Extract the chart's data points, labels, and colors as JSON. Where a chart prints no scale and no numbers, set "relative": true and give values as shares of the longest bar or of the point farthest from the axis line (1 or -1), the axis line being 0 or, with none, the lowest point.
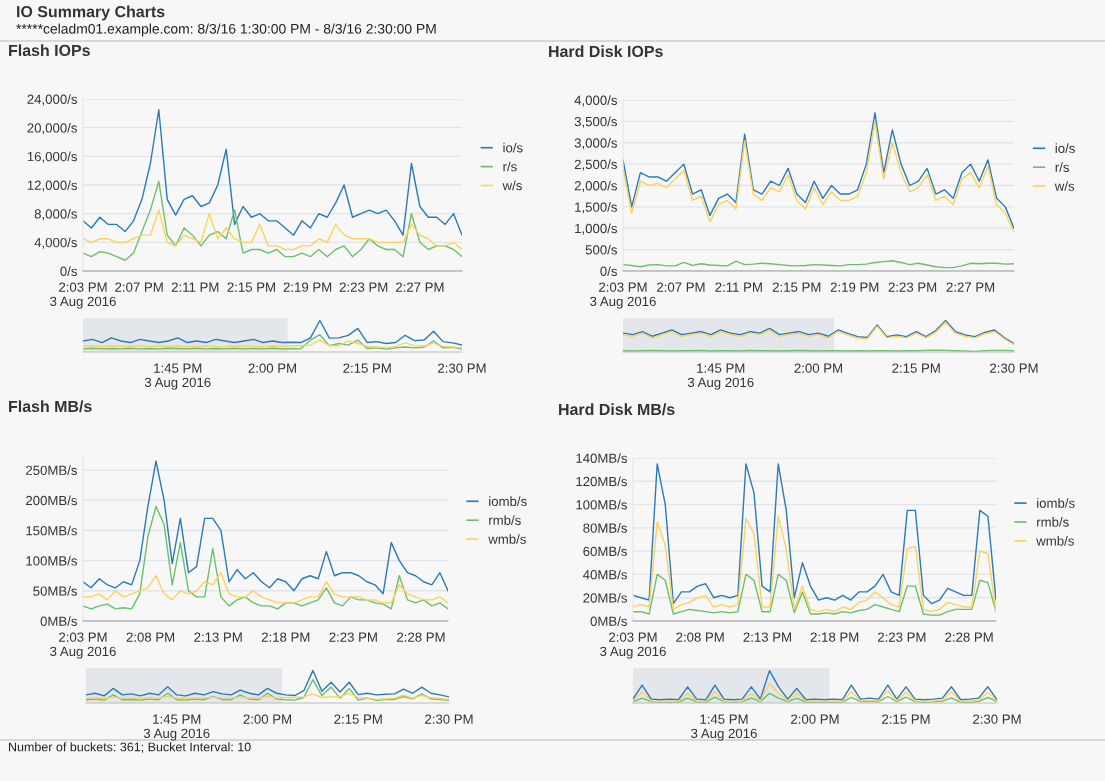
{
  "chart_data": [
    {
      "type": "other",
      "title": "IO Summary Charts",
      "subtitle": "*****celadm01.example.com: 8/3/16 1:30:00 PM - 8/3/16 2:30:00 PM",
      "annotations": [
        "Number of buckets: 361; Bucket Interval: 10"
      ]
    },
    {
      "type": "line",
      "title": "Flash IOPs",
      "legend": "right",
      "grid": "y",
      "xlim": [
        14.05,
        14.5
      ],
      "ylim": [
        0,
        24000
      ],
      "xticks": [
        {
          "value": 14.05,
          "label": "2:03 PM\n3 Aug 2016"
        },
        {
          "value": 14.1167,
          "label": "2:07 PM"
        },
        {
          "value": 14.1833,
          "label": "2:11 PM"
        },
        {
          "value": 14.25,
          "label": "2:15 PM"
        },
        {
          "value": 14.3167,
          "label": "2:19 PM"
        },
        {
          "value": 14.3833,
          "label": "2:23 PM"
        },
        {
          "value": 14.45,
          "label": "2:27 PM"
        }
      ],
      "yticks": [
        {
          "value": 0,
          "label": "0/s"
        },
        {
          "value": 4000,
          "label": "4,000/s"
        },
        {
          "value": 8000,
          "label": "8,000/s"
        },
        {
          "value": 12000,
          "label": "12,000/s"
        },
        {
          "value": 16000,
          "label": "16,000/s"
        },
        {
          "value": 20000,
          "label": "20,000/s"
        },
        {
          "value": 24000,
          "label": "24,000/s"
        }
      ],
      "x": [
        14.05,
        14.06,
        14.07,
        14.08,
        14.09,
        14.1,
        14.11,
        14.12,
        14.13,
        14.14,
        14.15,
        14.16,
        14.17,
        14.18,
        14.19,
        14.2,
        14.21,
        14.22,
        14.23,
        14.24,
        14.25,
        14.26,
        14.27,
        14.28,
        14.29,
        14.3,
        14.31,
        14.32,
        14.33,
        14.34,
        14.35,
        14.36,
        14.37,
        14.38,
        14.39,
        14.4,
        14.41,
        14.42,
        14.43,
        14.44,
        14.45,
        14.46,
        14.47,
        14.48,
        14.49,
        14.5
      ],
      "series": [
        {
          "name": "io/s",
          "color": "#2a7ab9",
          "values": [
            7000,
            6000,
            7500,
            6500,
            6500,
            5500,
            7000,
            10000,
            15000,
            22500,
            10000,
            7800,
            10000,
            10500,
            9000,
            9500,
            12000,
            17000,
            6500,
            9000,
            7500,
            8000,
            7000,
            7000,
            6000,
            5000,
            7000,
            6000,
            8000,
            7500,
            9500,
            12000,
            7500,
            8000,
            8500,
            8000,
            8500,
            7000,
            5000,
            15000,
            9000,
            7500,
            7500,
            6500,
            8000,
            5000
          ]
        },
        {
          "name": "r/s",
          "color": "#6cbf6c",
          "values": [
            2500,
            2000,
            2700,
            2500,
            2000,
            1500,
            2500,
            5500,
            8500,
            12500,
            5000,
            3500,
            6000,
            5000,
            3500,
            5000,
            5500,
            4500,
            8500,
            2500,
            3000,
            3000,
            2500,
            3000,
            2000,
            2000,
            2500,
            2000,
            3000,
            2000,
            3000,
            3500,
            2000,
            3000,
            4500,
            3500,
            3000,
            3000,
            2000,
            8000,
            4000,
            3000,
            3500,
            3500,
            3000,
            2000
          ]
        },
        {
          "name": "w/s",
          "color": "#fcd25a",
          "values": [
            4500,
            4000,
            4500,
            4500,
            4000,
            4000,
            4500,
            5000,
            5000,
            8500,
            4000,
            3500,
            5000,
            4500,
            4000,
            8000,
            4500,
            6000,
            4500,
            4000,
            4000,
            6500,
            3500,
            3500,
            3000,
            3000,
            3500,
            3500,
            4500,
            4000,
            6500,
            5000,
            4500,
            4500,
            4500,
            4000,
            4000,
            4000,
            4000,
            6500,
            5000,
            4500,
            3500,
            3500,
            4000,
            3000
          ]
        }
      ]
    },
    {
      "type": "line",
      "relative": true,
      "tick_labels": "x",
      "xlim": [
        13.5,
        14.5
      ],
      "xticks": [
        {
          "value": 13.75,
          "label": "1:45 PM\n3 Aug 2016"
        },
        {
          "value": 14,
          "label": "2:00 PM"
        },
        {
          "value": 14.25,
          "label": "2:15 PM"
        },
        {
          "value": 14.5,
          "label": "2:30 PM"
        }
      ],
      "bands": [
        {
          "axis": "x",
          "from": 13.5,
          "to": 14.04,
          "color": "#e3e6eb"
        }
      ],
      "x": [
        13.5,
        13.525,
        13.55,
        13.575,
        13.6,
        13.625,
        13.65,
        13.675,
        13.7,
        13.725,
        13.75,
        13.775,
        13.8,
        13.825,
        13.85,
        13.875,
        13.9,
        13.925,
        13.95,
        13.975,
        14,
        14.025,
        14.05,
        14.075,
        14.1,
        14.125,
        14.15,
        14.175,
        14.2,
        14.225,
        14.25,
        14.275,
        14.3,
        14.325,
        14.35,
        14.375,
        14.4,
        14.425,
        14.45,
        14.475,
        14.5
      ],
      "series": [
        {
          "color": "#2a7ab9",
          "values": [
            0.35,
            0.4,
            0.3,
            0.45,
            0.35,
            0.3,
            0.4,
            0.35,
            0.3,
            0.35,
            0.45,
            0.3,
            0.35,
            0.3,
            0.4,
            0.35,
            0.3,
            0.35,
            0.4,
            0.3,
            0.35,
            0.3,
            0.31,
            0.3,
            0.45,
            1,
            0.44,
            0.45,
            0.53,
            0.75,
            0.3,
            0.33,
            0.27,
            0.3,
            0.53,
            0.36,
            0.38,
            0.66,
            0.33,
            0.29,
            0.22
          ]
        },
        {
          "color": "#6cbf6c",
          "values": [
            0.1,
            0.12,
            0.1,
            0.11,
            0.1,
            0.12,
            0.1,
            0.11,
            0.1,
            0.12,
            0.11,
            0.1,
            0.12,
            0.1,
            0.11,
            0.1,
            0.12,
            0.1,
            0.11,
            0.1,
            0.12,
            0.1,
            0.11,
            0.1,
            0.38,
            0.55,
            0.2,
            0.27,
            0.22,
            0.38,
            0.11,
            0.13,
            0.09,
            0.13,
            0.16,
            0.13,
            0.15,
            0.35,
            0.13,
            0.15,
            0.09
          ]
        },
        {
          "color": "#fcd25a",
          "values": [
            0.18,
            0.2,
            0.17,
            0.2,
            0.18,
            0.19,
            0.2,
            0.17,
            0.19,
            0.18,
            0.2,
            0.17,
            0.19,
            0.2,
            0.18,
            0.17,
            0.19,
            0.2,
            0.18,
            0.17,
            0.19,
            0.18,
            0.2,
            0.2,
            0.22,
            0.38,
            0.2,
            0.2,
            0.35,
            0.27,
            0.18,
            0.16,
            0.14,
            0.18,
            0.29,
            0.2,
            0.19,
            0.28,
            0.18,
            0.16,
            0.13
          ]
        }
      ]
    },
    {
      "type": "line",
      "title": "Hard Disk IOPs",
      "legend": "right",
      "grid": "y",
      "xlim": [
        14.05,
        14.5
      ],
      "ylim": [
        0,
        4000
      ],
      "xticks": [
        {
          "value": 14.05,
          "label": "2:03 PM\n3 Aug 2016"
        },
        {
          "value": 14.1167,
          "label": "2:07 PM"
        },
        {
          "value": 14.1833,
          "label": "2:11 PM"
        },
        {
          "value": 14.25,
          "label": "2:15 PM"
        },
        {
          "value": 14.3167,
          "label": "2:19 PM"
        },
        {
          "value": 14.3833,
          "label": "2:23 PM"
        },
        {
          "value": 14.45,
          "label": "2:27 PM"
        }
      ],
      "yticks": [
        {
          "value": 0,
          "label": "0/s"
        },
        {
          "value": 500,
          "label": "500/s"
        },
        {
          "value": 1000,
          "label": "1,000/s"
        },
        {
          "value": 1500,
          "label": "1,500/s"
        },
        {
          "value": 2000,
          "label": "2,000/s"
        },
        {
          "value": 2500,
          "label": "2,500/s"
        },
        {
          "value": 3000,
          "label": "3,000/s"
        },
        {
          "value": 3500,
          "label": "3,500/s"
        },
        {
          "value": 4000,
          "label": "4,000/s"
        }
      ],
      "x": [
        14.05,
        14.06,
        14.07,
        14.08,
        14.09,
        14.1,
        14.11,
        14.12,
        14.13,
        14.14,
        14.15,
        14.16,
        14.17,
        14.18,
        14.19,
        14.2,
        14.21,
        14.22,
        14.23,
        14.24,
        14.25,
        14.26,
        14.27,
        14.28,
        14.29,
        14.3,
        14.31,
        14.32,
        14.33,
        14.34,
        14.35,
        14.36,
        14.37,
        14.38,
        14.39,
        14.4,
        14.41,
        14.42,
        14.43,
        14.44,
        14.45,
        14.46,
        14.47,
        14.48,
        14.49,
        14.5
      ],
      "series": [
        {
          "name": "io/s",
          "color": "#2a7ab9",
          "values": [
            2600,
            1500,
            2300,
            2200,
            2200,
            2100,
            2300,
            2500,
            1800,
            1900,
            1300,
            1700,
            1800,
            1600,
            3200,
            1900,
            1800,
            2100,
            2000,
            2400,
            1800,
            1600,
            2100,
            1700,
            2000,
            1800,
            1800,
            1900,
            2500,
            3700,
            2300,
            3300,
            2500,
            2000,
            2100,
            2400,
            1800,
            1900,
            1700,
            2300,
            2500,
            2100,
            2600,
            1700,
            1500,
            1000
          ]
        },
        {
          "name": "r/s",
          "color": "#6cbf6c",
          "values": [
            150,
            130,
            100,
            140,
            150,
            120,
            120,
            200,
            130,
            170,
            140,
            130,
            120,
            230,
            150,
            160,
            180,
            170,
            150,
            130,
            120,
            130,
            150,
            140,
            130,
            120,
            150,
            150,
            160,
            200,
            220,
            240,
            200,
            150,
            180,
            140,
            100,
            80,
            80,
            120,
            180,
            170,
            180,
            180,
            160,
            170
          ]
        },
        {
          "name": "w/s",
          "color": "#fcd25a",
          "values": [
            2400,
            1350,
            2100,
            2000,
            2050,
            1950,
            2150,
            2350,
            1650,
            1750,
            1150,
            1550,
            1650,
            1450,
            3050,
            1800,
            1650,
            1950,
            1850,
            2250,
            1650,
            1450,
            1950,
            1550,
            1850,
            1650,
            1650,
            1750,
            2300,
            3500,
            2150,
            3000,
            2300,
            1850,
            1950,
            2250,
            1650,
            1750,
            1550,
            2150,
            2300,
            1950,
            2450,
            1550,
            1350,
            900
          ]
        }
      ]
    },
    {
      "type": "line",
      "relative": true,
      "tick_labels": "x",
      "xlim": [
        13.5,
        14.5
      ],
      "xticks": [
        {
          "value": 13.75,
          "label": "1:45 PM\n3 Aug 2016"
        },
        {
          "value": 14,
          "label": "2:00 PM"
        },
        {
          "value": 14.25,
          "label": "2:15 PM"
        },
        {
          "value": 14.5,
          "label": "2:30 PM"
        }
      ],
      "bands": [
        {
          "axis": "x",
          "from": 13.5,
          "to": 14.04,
          "color": "#e3e6eb"
        }
      ],
      "x": [
        13.5,
        13.525,
        13.55,
        13.575,
        13.6,
        13.625,
        13.65,
        13.675,
        13.7,
        13.725,
        13.75,
        13.775,
        13.8,
        13.825,
        13.85,
        13.875,
        13.9,
        13.925,
        13.95,
        13.975,
        14,
        14.025,
        14.05,
        14.075,
        14.1,
        14.125,
        14.15,
        14.175,
        14.2,
        14.225,
        14.25,
        14.275,
        14.3,
        14.325,
        14.35,
        14.375,
        14.4,
        14.425,
        14.45,
        14.475,
        14.5
      ],
      "series": [
        {
          "color": "#2a7ab9",
          "values": [
            0.6,
            0.55,
            0.65,
            0.5,
            0.6,
            0.7,
            0.55,
            0.6,
            0.65,
            0.55,
            0.7,
            0.6,
            0.55,
            0.65,
            0.6,
            0.75,
            0.55,
            0.6,
            0.65,
            0.55,
            0.6,
            0.5,
            0.7,
            0.59,
            0.49,
            0.46,
            0.86,
            0.49,
            0.54,
            0.49,
            0.65,
            0.49,
            0.68,
            1,
            0.65,
            0.54,
            0.49,
            0.62,
            0.7,
            0.46,
            0.27
          ]
        },
        {
          "color": "#6cbf6c",
          "values": [
            0.04,
            0.03,
            0.04,
            0.05,
            0.04,
            0.03,
            0.04,
            0.04,
            0.05,
            0.03,
            0.04,
            0.04,
            0.03,
            0.05,
            0.04,
            0.04,
            0.03,
            0.04,
            0.05,
            0.04,
            0.03,
            0.04,
            0.04,
            0.03,
            0.04,
            0.03,
            0.04,
            0.04,
            0.03,
            0.04,
            0.04,
            0.05,
            0.06,
            0.05,
            0.04,
            0.03,
            0.02,
            0.04,
            0.05,
            0.05,
            0.04
          ]
        },
        {
          "color": "#fcd25a",
          "values": [
            0.55,
            0.5,
            0.6,
            0.45,
            0.55,
            0.65,
            0.5,
            0.55,
            0.6,
            0.5,
            0.65,
            0.55,
            0.5,
            0.6,
            0.55,
            0.7,
            0.5,
            0.55,
            0.6,
            0.5,
            0.55,
            0.45,
            0.65,
            0.54,
            0.44,
            0.42,
            0.82,
            0.45,
            0.5,
            0.45,
            0.6,
            0.45,
            0.63,
            0.95,
            0.6,
            0.5,
            0.45,
            0.58,
            0.65,
            0.42,
            0.24
          ]
        }
      ]
    },
    {
      "type": "line",
      "title": "Flash MB/s",
      "legend": "right",
      "grid": "y",
      "xlim": [
        14.05,
        14.5
      ],
      "ylim": [
        0,
        275
      ],
      "xticks": [
        {
          "value": 14.05,
          "label": "2:03 PM\n3 Aug 2016"
        },
        {
          "value": 14.1333,
          "label": "2:08 PM"
        },
        {
          "value": 14.2167,
          "label": "2:13 PM"
        },
        {
          "value": 14.3,
          "label": "2:18 PM"
        },
        {
          "value": 14.3833,
          "label": "2:23 PM"
        },
        {
          "value": 14.4667,
          "label": "2:28 PM"
        }
      ],
      "yticks": [
        {
          "value": 0,
          "label": "0MB/s"
        },
        {
          "value": 50,
          "label": "50MB/s"
        },
        {
          "value": 100,
          "label": "100MB/s"
        },
        {
          "value": 150,
          "label": "150MB/s"
        },
        {
          "value": 200,
          "label": "200MB/s"
        },
        {
          "value": 250,
          "label": "250MB/s"
        }
      ],
      "x": [
        14.05,
        14.06,
        14.07,
        14.08,
        14.09,
        14.1,
        14.11,
        14.12,
        14.13,
        14.14,
        14.15,
        14.16,
        14.17,
        14.18,
        14.19,
        14.2,
        14.21,
        14.22,
        14.23,
        14.24,
        14.25,
        14.26,
        14.27,
        14.28,
        14.29,
        14.3,
        14.31,
        14.32,
        14.33,
        14.34,
        14.35,
        14.36,
        14.37,
        14.38,
        14.39,
        14.4,
        14.41,
        14.42,
        14.43,
        14.44,
        14.45,
        14.46,
        14.47,
        14.48,
        14.49,
        14.5
      ],
      "series": [
        {
          "name": "iomb/s",
          "color": "#2a7ab9",
          "values": [
            65,
            55,
            70,
            60,
            55,
            65,
            60,
            100,
            190,
            265,
            200,
            95,
            170,
            80,
            90,
            170,
            170,
            150,
            65,
            85,
            70,
            80,
            65,
            55,
            70,
            65,
            50,
            70,
            75,
            70,
            115,
            75,
            80,
            80,
            75,
            65,
            60,
            45,
            130,
            100,
            80,
            75,
            65,
            60,
            80,
            50
          ]
        },
        {
          "name": "rmb/s",
          "color": "#6cbf6c",
          "values": [
            25,
            20,
            25,
            28,
            20,
            22,
            20,
            45,
            140,
            190,
            160,
            60,
            130,
            50,
            40,
            40,
            120,
            40,
            25,
            35,
            40,
            30,
            25,
            25,
            20,
            30,
            30,
            25,
            30,
            35,
            55,
            30,
            25,
            40,
            35,
            35,
            30,
            28,
            20,
            75,
            35,
            30,
            35,
            25,
            30,
            20
          ]
        },
        {
          "name": "wmb/s",
          "color": "#fcd25a",
          "values": [
            40,
            40,
            45,
            35,
            50,
            40,
            45,
            50,
            55,
            75,
            45,
            35,
            50,
            45,
            50,
            65,
            60,
            80,
            45,
            40,
            40,
            50,
            40,
            35,
            30,
            30,
            30,
            35,
            40,
            40,
            65,
            45,
            40,
            40,
            40,
            35,
            35,
            30,
            30,
            60,
            45,
            40,
            35,
            35,
            40,
            30
          ]
        }
      ]
    },
    {
      "type": "line",
      "relative": true,
      "tick_labels": "x",
      "xlim": [
        13.5,
        14.5
      ],
      "xticks": [
        {
          "value": 13.75,
          "label": "1:45 PM\n3 Aug 2016"
        },
        {
          "value": 14,
          "label": "2:00 PM"
        },
        {
          "value": 14.25,
          "label": "2:15 PM"
        },
        {
          "value": 14.5,
          "label": "2:30 PM"
        }
      ],
      "bands": [
        {
          "axis": "x",
          "from": 13.5,
          "to": 14.04,
          "color": "#e3e6eb"
        }
      ],
      "x": [
        13.5,
        13.525,
        13.55,
        13.575,
        13.6,
        13.625,
        13.65,
        13.675,
        13.7,
        13.725,
        13.75,
        13.775,
        13.8,
        13.825,
        13.85,
        13.875,
        13.9,
        13.925,
        13.95,
        13.975,
        14,
        14.025,
        14.05,
        14.075,
        14.1,
        14.125,
        14.15,
        14.175,
        14.2,
        14.225,
        14.25,
        14.275,
        14.3,
        14.325,
        14.35,
        14.375,
        14.4,
        14.425,
        14.45,
        14.475,
        14.5
      ],
      "series": [
        {
          "color": "#2a7ab9",
          "values": [
            0.25,
            0.3,
            0.22,
            0.45,
            0.25,
            0.28,
            0.22,
            0.3,
            0.25,
            0.5,
            0.25,
            0.22,
            0.3,
            0.25,
            0.35,
            0.28,
            0.25,
            0.4,
            0.3,
            0.25,
            0.45,
            0.3,
            0.25,
            0.23,
            0.38,
            1,
            0.36,
            0.64,
            0.34,
            0.64,
            0.26,
            0.3,
            0.25,
            0.27,
            0.28,
            0.43,
            0.3,
            0.49,
            0.3,
            0.25,
            0.19
          ]
        },
        {
          "color": "#6cbf6c",
          "values": [
            0.1,
            0.12,
            0.09,
            0.25,
            0.1,
            0.11,
            0.09,
            0.12,
            0.1,
            0.3,
            0.1,
            0.09,
            0.12,
            0.1,
            0.2,
            0.11,
            0.1,
            0.25,
            0.12,
            0.1,
            0.3,
            0.12,
            0.1,
            0.09,
            0.17,
            0.72,
            0.23,
            0.49,
            0.15,
            0.45,
            0.09,
            0.15,
            0.08,
            0.11,
            0.11,
            0.2,
            0.13,
            0.28,
            0.13,
            0.11,
            0.08
          ]
        },
        {
          "color": "#fcd25a",
          "values": [
            0.15,
            0.16,
            0.14,
            0.18,
            0.15,
            0.16,
            0.14,
            0.17,
            0.15,
            0.2,
            0.15,
            0.14,
            0.16,
            0.15,
            0.18,
            0.16,
            0.15,
            0.18,
            0.16,
            0.15,
            0.2,
            0.16,
            0.17,
            0.17,
            0.19,
            0.28,
            0.17,
            0.19,
            0.2,
            0.3,
            0.17,
            0.15,
            0.11,
            0.13,
            0.15,
            0.24,
            0.15,
            0.24,
            0.16,
            0.14,
            0.11
          ]
        }
      ]
    },
    {
      "type": "line",
      "title": "Hard Disk MB/s",
      "legend": "right",
      "grid": "y",
      "xlim": [
        14.05,
        14.5
      ],
      "ylim": [
        0,
        140
      ],
      "xticks": [
        {
          "value": 14.05,
          "label": "2:03 PM\n3 Aug 2016"
        },
        {
          "value": 14.1333,
          "label": "2:08 PM"
        },
        {
          "value": 14.2167,
          "label": "2:13 PM"
        },
        {
          "value": 14.3,
          "label": "2:18 PM"
        },
        {
          "value": 14.3833,
          "label": "2:23 PM"
        },
        {
          "value": 14.4667,
          "label": "2:28 PM"
        }
      ],
      "yticks": [
        {
          "value": 0,
          "label": "0MB/s"
        },
        {
          "value": 20,
          "label": "20MB/s"
        },
        {
          "value": 40,
          "label": "40MB/s"
        },
        {
          "value": 60,
          "label": "60MB/s"
        },
        {
          "value": 80,
          "label": "80MB/s"
        },
        {
          "value": 100,
          "label": "100MB/s"
        },
        {
          "value": 120,
          "label": "120MB/s"
        },
        {
          "value": 140,
          "label": "140MB/s"
        }
      ],
      "x": [
        14.05,
        14.06,
        14.07,
        14.08,
        14.09,
        14.1,
        14.11,
        14.12,
        14.13,
        14.14,
        14.15,
        14.16,
        14.17,
        14.18,
        14.19,
        14.2,
        14.21,
        14.22,
        14.23,
        14.24,
        14.25,
        14.26,
        14.27,
        14.28,
        14.29,
        14.3,
        14.31,
        14.32,
        14.33,
        14.34,
        14.35,
        14.36,
        14.37,
        14.38,
        14.39,
        14.4,
        14.41,
        14.42,
        14.43,
        14.44,
        14.45,
        14.46,
        14.47,
        14.48,
        14.49,
        14.5
      ],
      "series": [
        {
          "name": "iomb/s",
          "color": "#2a7ab9",
          "values": [
            22,
            20,
            18,
            135,
            100,
            15,
            25,
            25,
            30,
            32,
            20,
            22,
            20,
            22,
            135,
            110,
            30,
            25,
            135,
            95,
            20,
            50,
            30,
            18,
            20,
            18,
            22,
            18,
            25,
            25,
            30,
            40,
            25,
            22,
            95,
            95,
            22,
            15,
            18,
            28,
            25,
            22,
            22,
            95,
            90,
            18
          ]
        },
        {
          "name": "rmb/s",
          "color": "#6cbf6c",
          "values": [
            8,
            8,
            6,
            40,
            35,
            6,
            8,
            10,
            9,
            8,
            7,
            8,
            7,
            8,
            40,
            35,
            8,
            8,
            40,
            35,
            7,
            25,
            6,
            6,
            7,
            6,
            8,
            7,
            9,
            10,
            14,
            12,
            10,
            8,
            30,
            30,
            6,
            5,
            5,
            8,
            10,
            10,
            10,
            35,
            33,
            8
          ]
        },
        {
          "name": "wmb/s",
          "color": "#fcd25a",
          "values": [
            12,
            14,
            12,
            85,
            65,
            10,
            14,
            16,
            20,
            22,
            12,
            14,
            12,
            14,
            88,
            75,
            12,
            12,
            90,
            62,
            10,
            30,
            10,
            8,
            10,
            8,
            12,
            10,
            16,
            18,
            25,
            20,
            14,
            12,
            62,
            64,
            10,
            8,
            10,
            16,
            14,
            12,
            12,
            60,
            58,
            8
          ]
        }
      ]
    },
    {
      "type": "line",
      "relative": true,
      "tick_labels": "x",
      "xlim": [
        13.5,
        14.5
      ],
      "xticks": [
        {
          "value": 13.75,
          "label": "1:45 PM\n3 Aug 2016"
        },
        {
          "value": 14,
          "label": "2:00 PM"
        },
        {
          "value": 14.25,
          "label": "2:15 PM"
        },
        {
          "value": 14.5,
          "label": "2:30 PM"
        }
      ],
      "bands": [
        {
          "axis": "x",
          "from": 13.5,
          "to": 14.04,
          "color": "#e3e6eb"
        }
      ],
      "x": [
        13.5,
        13.525,
        13.55,
        13.575,
        13.6,
        13.625,
        13.65,
        13.675,
        13.7,
        13.725,
        13.75,
        13.775,
        13.8,
        13.825,
        13.85,
        13.875,
        13.9,
        13.925,
        13.95,
        13.975,
        14,
        14.025,
        14.05,
        14.075,
        14.1,
        14.125,
        14.15,
        14.175,
        14.2,
        14.225,
        14.25,
        14.275,
        14.3,
        14.325,
        14.35,
        14.375,
        14.4,
        14.425,
        14.45,
        14.475,
        14.5
      ],
      "series": [
        {
          "color": "#2a7ab9",
          "values": [
            0.12,
            0.55,
            0.12,
            0.1,
            0.12,
            0.1,
            0.5,
            0.12,
            0.1,
            0.55,
            0.12,
            0.1,
            0.12,
            0.5,
            0.12,
            1,
            0.5,
            0.12,
            0.45,
            0.1,
            0.12,
            0.1,
            0.12,
            0.1,
            0.55,
            0.12,
            0.15,
            0.12,
            0.55,
            0.12,
            0.5,
            0.12,
            0.1,
            0.12,
            0.15,
            0.5,
            0.1,
            0.12,
            0.15,
            0.5,
            0.1
          ]
        },
        {
          "color": "#6cbf6c",
          "values": [
            0.04,
            0.15,
            0.04,
            0.03,
            0.04,
            0.03,
            0.15,
            0.04,
            0.03,
            0.18,
            0.04,
            0.03,
            0.04,
            0.15,
            0.04,
            0.3,
            0.15,
            0.04,
            0.15,
            0.03,
            0.04,
            0.03,
            0.04,
            0.03,
            0.17,
            0.04,
            0.05,
            0.04,
            0.2,
            0.04,
            0.18,
            0.04,
            0.03,
            0.04,
            0.06,
            0.16,
            0.03,
            0.02,
            0.05,
            0.17,
            0.04
          ]
        },
        {
          "color": "#fcd25a",
          "values": [
            0.06,
            0.35,
            0.06,
            0.05,
            0.06,
            0.05,
            0.3,
            0.06,
            0.05,
            0.35,
            0.06,
            0.05,
            0.06,
            0.3,
            0.06,
            0.6,
            0.3,
            0.06,
            0.3,
            0.05,
            0.06,
            0.05,
            0.06,
            0.05,
            0.35,
            0.06,
            0.08,
            0.06,
            0.38,
            0.06,
            0.33,
            0.06,
            0.05,
            0.06,
            0.09,
            0.35,
            0.05,
            0.06,
            0.08,
            0.33,
            0.05
          ]
        }
      ]
    }
  ]
}
